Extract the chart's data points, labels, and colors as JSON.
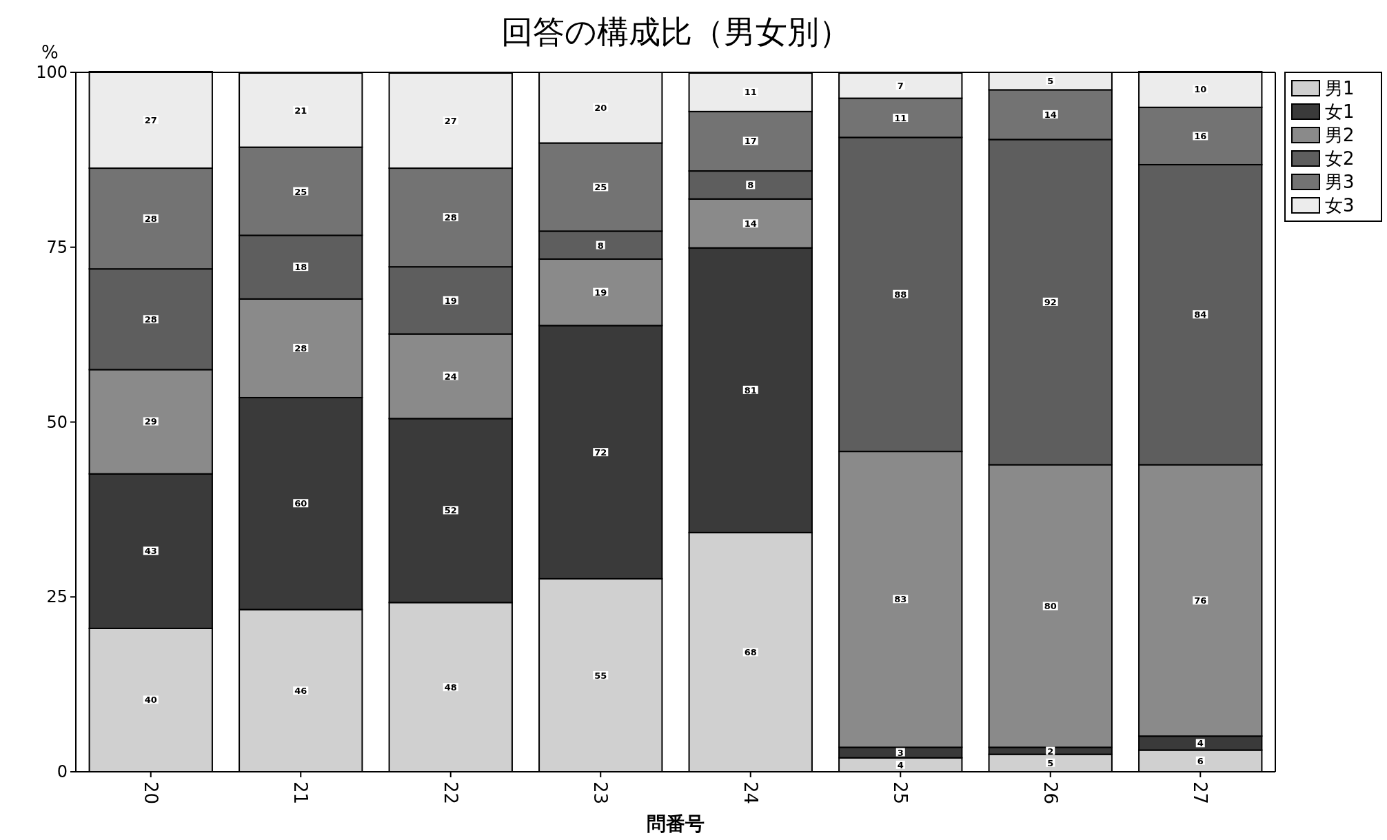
{
  "chart_data": {
    "type": "bar",
    "stacked": true,
    "title": "回答の構成比（男女別）",
    "xlabel": "問番号",
    "ylabel": "%",
    "categories": [
      "20",
      "21",
      "22",
      "23",
      "24",
      "25",
      "26",
      "27"
    ],
    "ylim": [
      0,
      100
    ],
    "yticks": [
      0,
      25,
      50,
      75,
      100
    ],
    "grid": false,
    "legend": "top right",
    "series": [
      {
        "name": "男1",
        "color": "#d0d0d0",
        "values": [
          20.5,
          23.2,
          24.2,
          27.6,
          34.2,
          2.0,
          2.5,
          3.1
        ]
      },
      {
        "name": "女1",
        "color": "#3a3a3a",
        "values": [
          22.1,
          30.3,
          26.3,
          36.2,
          40.7,
          1.5,
          1.0,
          2.0
        ]
      },
      {
        "name": "男2",
        "color": "#8a8a8a",
        "values": [
          14.9,
          14.1,
          12.1,
          9.5,
          7.0,
          42.3,
          40.4,
          38.8
        ]
      },
      {
        "name": "女2",
        "color": "#5e5e5e",
        "values": [
          14.4,
          9.1,
          9.6,
          4.0,
          4.0,
          44.9,
          46.5,
          42.9
        ]
      },
      {
        "name": "男3",
        "color": "#737373",
        "values": [
          14.4,
          12.6,
          14.1,
          12.6,
          8.5,
          5.6,
          7.1,
          8.2
        ]
      },
      {
        "name": "女3",
        "color": "#ececec",
        "values": [
          13.8,
          10.6,
          13.6,
          10.1,
          5.5,
          3.6,
          2.5,
          5.1
        ]
      }
    ],
    "annotations": [
      {
        "text": "40",
        "x": "20",
        "y": 10.3
      },
      {
        "text": "46",
        "x": "21",
        "y": 11.6
      },
      {
        "text": "48",
        "x": "22",
        "y": 12.1
      },
      {
        "text": "55",
        "x": "23",
        "y": 13.8
      },
      {
        "text": "68",
        "x": "24",
        "y": 17.1
      },
      {
        "text": "4",
        "x": "25",
        "y": 1.0
      },
      {
        "text": "5",
        "x": "26",
        "y": 1.3
      },
      {
        "text": "6",
        "x": "27",
        "y": 1.6
      },
      {
        "text": "43",
        "x": "20",
        "y": 31.6
      },
      {
        "text": "60",
        "x": "21",
        "y": 38.4
      },
      {
        "text": "52",
        "x": "22",
        "y": 37.4
      },
      {
        "text": "72",
        "x": "23",
        "y": 45.7
      },
      {
        "text": "81",
        "x": "24",
        "y": 54.6
      },
      {
        "text": "3",
        "x": "25",
        "y": 2.8
      },
      {
        "text": "2",
        "x": "26",
        "y": 3.0
      },
      {
        "text": "4",
        "x": "27",
        "y": 4.1
      },
      {
        "text": "29",
        "x": "20",
        "y": 50.1
      },
      {
        "text": "28",
        "x": "21",
        "y": 60.6
      },
      {
        "text": "24",
        "x": "22",
        "y": 56.6
      },
      {
        "text": "19",
        "x": "23",
        "y": 68.6
      },
      {
        "text": "14",
        "x": "24",
        "y": 78.4
      },
      {
        "text": "83",
        "x": "25",
        "y": 24.7
      },
      {
        "text": "80",
        "x": "26",
        "y": 23.7
      },
      {
        "text": "76",
        "x": "27",
        "y": 24.5
      },
      {
        "text": "28",
        "x": "20",
        "y": 64.7
      },
      {
        "text": "18",
        "x": "21",
        "y": 72.2
      },
      {
        "text": "19",
        "x": "22",
        "y": 67.4
      },
      {
        "text": "8",
        "x": "23",
        "y": 75.3
      },
      {
        "text": "8",
        "x": "24",
        "y": 83.9
      },
      {
        "text": "88",
        "x": "25",
        "y": 68.3
      },
      {
        "text": "92",
        "x": "26",
        "y": 67.2
      },
      {
        "text": "84",
        "x": "27",
        "y": 65.4
      },
      {
        "text": "28",
        "x": "20",
        "y": 79.1
      },
      {
        "text": "25",
        "x": "21",
        "y": 83.0
      },
      {
        "text": "28",
        "x": "22",
        "y": 79.3
      },
      {
        "text": "25",
        "x": "23",
        "y": 83.6
      },
      {
        "text": "17",
        "x": "24",
        "y": 90.2
      },
      {
        "text": "11",
        "x": "25",
        "y": 93.5
      },
      {
        "text": "14",
        "x": "26",
        "y": 94.0
      },
      {
        "text": "16",
        "x": "27",
        "y": 90.9
      },
      {
        "text": "27",
        "x": "20",
        "y": 93.2
      },
      {
        "text": "21",
        "x": "21",
        "y": 94.6
      },
      {
        "text": "27",
        "x": "22",
        "y": 93.1
      },
      {
        "text": "20",
        "x": "23",
        "y": 95.0
      },
      {
        "text": "11",
        "x": "24",
        "y": 97.2
      },
      {
        "text": "7",
        "x": "25",
        "y": 98.1
      },
      {
        "text": "5",
        "x": "26",
        "y": 98.8
      },
      {
        "text": "10",
        "x": "27",
        "y": 97.6
      }
    ]
  }
}
